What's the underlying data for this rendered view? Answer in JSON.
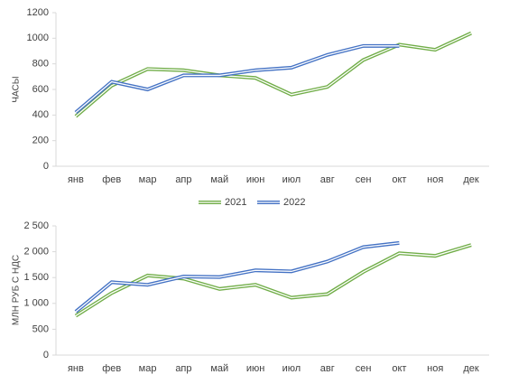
{
  "chart_data": [
    {
      "type": "line",
      "y_label": "ЧАСЫ",
      "categories": [
        "янв",
        "фев",
        "мар",
        "апр",
        "май",
        "июн",
        "июл",
        "авг",
        "сен",
        "окт",
        "ноя",
        "дек"
      ],
      "ylim": [
        0,
        1200
      ],
      "yticks": [
        0,
        200,
        400,
        600,
        800,
        1000,
        1200
      ],
      "series": [
        {
          "name": "2021",
          "color": "#70ad47",
          "values": [
            390,
            630,
            760,
            750,
            710,
            690,
            560,
            620,
            830,
            950,
            910,
            1040
          ]
        },
        {
          "name": "2022",
          "color": "#4472c4",
          "values": [
            420,
            660,
            600,
            710,
            710,
            750,
            770,
            870,
            940,
            940,
            null,
            null
          ]
        }
      ]
    },
    {
      "type": "line",
      "y_label": "МЛН РУБ С НДС",
      "categories": [
        "янв",
        "фев",
        "мар",
        "апр",
        "май",
        "июн",
        "июл",
        "авг",
        "сен",
        "окт",
        "ноя",
        "дек"
      ],
      "ylim": [
        0,
        2500
      ],
      "yticks": [
        0,
        500,
        {
          "value": 1000,
          "label": "1 000"
        },
        {
          "value": 1500,
          "label": "1 500"
        },
        {
          "value": 2000,
          "label": "2 000"
        },
        {
          "value": 2500,
          "label": "2 500"
        }
      ],
      "series": [
        {
          "name": "2021",
          "color": "#70ad47",
          "values": [
            760,
            1200,
            1540,
            1480,
            1280,
            1360,
            1110,
            1180,
            1610,
            1970,
            1920,
            2130
          ]
        },
        {
          "name": "2022",
          "color": "#4472c4",
          "values": [
            840,
            1410,
            1360,
            1520,
            1510,
            1640,
            1620,
            1810,
            2090,
            2170,
            null,
            null
          ]
        }
      ]
    }
  ]
}
